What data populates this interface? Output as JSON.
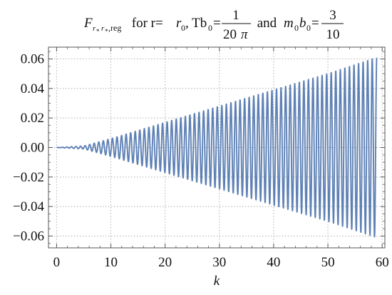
{
  "chart_data": {
    "type": "line",
    "title": {
      "function_symbol": "F",
      "subscript": "r",
      "subscript_star": "*",
      "subscript_suffix": ",reg",
      "for_text": " for r=",
      "r_symbol": "r",
      "r_index": "0",
      "tb_text": ", Tb",
      "tb_index": "0",
      "tb_equals": "=",
      "tb_num": "1",
      "tb_den": "20",
      "tb_pi": "π",
      "and_text": " and ",
      "m_symbol": "m",
      "m_index": "0",
      "b_symbol": "b",
      "b_index": "0",
      "mb_equals": "=",
      "mb_num": "3",
      "mb_den": "10"
    },
    "xlabel": "k",
    "ylabel": "",
    "xlim": [
      -1.5,
      60.5
    ],
    "ylim": [
      -0.068,
      0.068
    ],
    "xticks": [
      0,
      10,
      20,
      30,
      40,
      50,
      60
    ],
    "xtick_labels": [
      "0",
      "10",
      "20",
      "30",
      "40",
      "50",
      "60"
    ],
    "yticks": [
      -0.06,
      -0.04,
      -0.02,
      0.0,
      0.02,
      0.04,
      0.06
    ],
    "ytick_labels": [
      "−0.06",
      "−0.04",
      "−0.02",
      "0.00",
      "0.02",
      "0.04",
      "0.06"
    ],
    "grid": true,
    "series": [
      {
        "color": "#5e81b5",
        "description_of_shape": "oscillation with linearly growing amplitude",
        "x_range": [
          0,
          59
        ],
        "oscillation_period": 0.84,
        "envelope": [
          [
            0,
            0.0
          ],
          [
            5,
            0.001
          ],
          [
            10,
            0.006
          ],
          [
            20,
            0.017
          ],
          [
            30,
            0.028
          ],
          [
            40,
            0.039
          ],
          [
            50,
            0.05
          ],
          [
            59,
            0.061
          ]
        ]
      }
    ]
  },
  "style": {
    "line_color": "#5e81b5",
    "grid_color": "#b0b0b0",
    "frame_color": "#555555"
  }
}
